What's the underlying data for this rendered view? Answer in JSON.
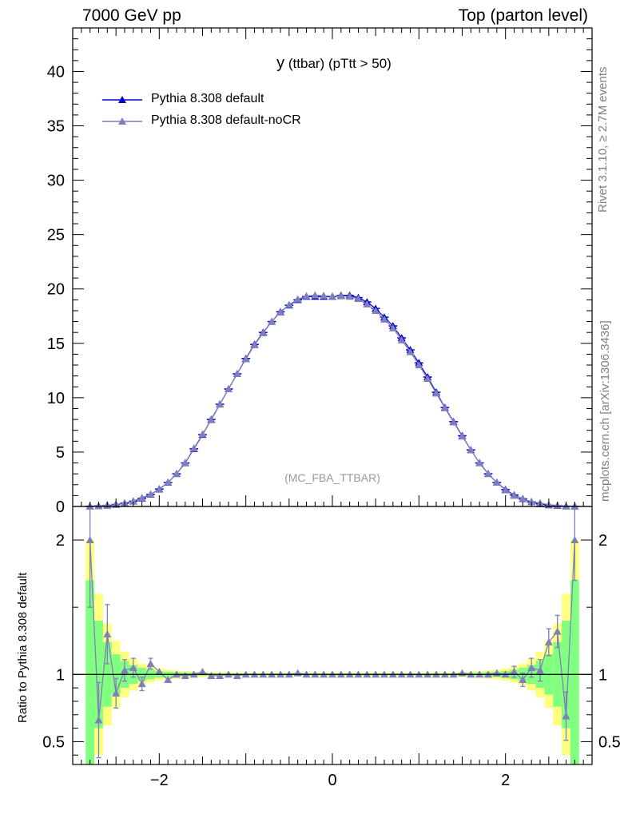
{
  "header": {
    "left": "7000 GeV pp",
    "right": "Top (parton level)"
  },
  "side_labels": {
    "rivet": "Rivet 3.1.10, ≥ 2.7M events",
    "mcplots": "mcplots.cern.ch [arXiv:1306.3436]"
  },
  "title_main": "y",
  "title_rest": " (ttbar) (pTtt > 50)",
  "watermark": "(MC_FBA_TTBAR)",
  "ratio_ylabel": "Ratio to Pythia 8.308 default",
  "colors": {
    "default": "#0000cc",
    "nocr": "#7f7fbb",
    "band_yellow": "#ffff80",
    "band_green": "#80ff80"
  },
  "chart_data": [
    {
      "type": "line",
      "panel": "main",
      "xlim": [
        -3,
        3
      ],
      "ylim": [
        0,
        44
      ],
      "yticks": [
        0,
        5,
        10,
        15,
        20,
        25,
        30,
        35,
        40
      ],
      "ytick_labels": [
        "0",
        "5",
        "10",
        "15",
        "20",
        "25",
        "30",
        "35",
        "40"
      ],
      "x": [
        -2.8,
        -2.7,
        -2.6,
        -2.5,
        -2.4,
        -2.3,
        -2.2,
        -2.1,
        -2.0,
        -1.9,
        -1.8,
        -1.7,
        -1.6,
        -1.5,
        -1.4,
        -1.3,
        -1.2,
        -1.1,
        -1.0,
        -0.9,
        -0.8,
        -0.7,
        -0.6,
        -0.5,
        -0.4,
        -0.3,
        -0.2,
        -0.1,
        0.0,
        0.1,
        0.2,
        0.3,
        0.4,
        0.5,
        0.6,
        0.7,
        0.8,
        0.9,
        1.0,
        1.1,
        1.2,
        1.3,
        1.4,
        1.5,
        1.6,
        1.7,
        1.8,
        1.9,
        2.0,
        2.1,
        2.2,
        2.3,
        2.4,
        2.5,
        2.6,
        2.7,
        2.8
      ],
      "series": [
        {
          "name": "Pythia 8.308 default",
          "values": [
            0.02,
            0.05,
            0.1,
            0.18,
            0.3,
            0.48,
            0.75,
            1.1,
            1.6,
            2.2,
            3.0,
            4.0,
            5.3,
            6.6,
            8.0,
            9.4,
            10.8,
            12.2,
            13.6,
            14.9,
            16.0,
            17.0,
            17.9,
            18.5,
            19.0,
            19.3,
            19.3,
            19.3,
            19.3,
            19.4,
            19.4,
            19.2,
            18.8,
            18.2,
            17.4,
            16.6,
            15.5,
            14.4,
            13.2,
            11.9,
            10.5,
            9.1,
            7.8,
            6.5,
            5.2,
            4.0,
            3.0,
            2.2,
            1.55,
            1.05,
            0.7,
            0.42,
            0.24,
            0.13,
            0.07,
            0.03,
            0.015
          ]
        },
        {
          "name": "Pythia 8.308 default-noCR",
          "values": [
            0.04,
            0.033,
            0.13,
            0.155,
            0.31,
            0.5,
            0.8,
            1.12,
            1.56,
            2.22,
            3.02,
            4.03,
            5.35,
            6.65,
            7.95,
            9.38,
            10.8,
            12.2,
            13.55,
            14.85,
            15.95,
            17.0,
            17.85,
            18.55,
            19.05,
            19.35,
            19.42,
            19.38,
            19.33,
            19.35,
            19.3,
            19.1,
            18.6,
            18.0,
            17.2,
            16.4,
            15.3,
            14.2,
            13.0,
            11.75,
            10.4,
            9.05,
            7.75,
            6.45,
            5.2,
            4.02,
            3.02,
            2.2,
            1.5,
            1.0,
            0.72,
            0.43,
            0.32,
            0.16,
            0.095,
            0.02,
            0.03
          ]
        }
      ]
    },
    {
      "type": "line",
      "panel": "ratio",
      "ylabel": "Ratio to Pythia 8.308 default",
      "xlim": [
        -3,
        3
      ],
      "ylim": [
        0.33,
        2.25
      ],
      "yticks": [
        0.5,
        1,
        2
      ],
      "ytick_labels": [
        "0.5",
        "1",
        "2"
      ],
      "xticks": [
        -2,
        0,
        2
      ],
      "xtick_labels": [
        "−2",
        "0",
        "2"
      ],
      "x": [
        -2.8,
        -2.7,
        -2.6,
        -2.5,
        -2.4,
        -2.3,
        -2.2,
        -2.1,
        -2.0,
        -1.9,
        -1.8,
        -1.7,
        -1.6,
        -1.5,
        -1.4,
        -1.3,
        -1.2,
        -1.1,
        -1.0,
        -0.9,
        -0.8,
        -0.7,
        -0.6,
        -0.5,
        -0.4,
        -0.3,
        -0.2,
        -0.1,
        0.0,
        0.1,
        0.2,
        0.3,
        0.4,
        0.5,
        0.6,
        0.7,
        0.8,
        0.9,
        1.0,
        1.1,
        1.2,
        1.3,
        1.4,
        1.5,
        1.6,
        1.7,
        1.8,
        1.9,
        2.0,
        2.1,
        2.2,
        2.3,
        2.4,
        2.5,
        2.6,
        2.7,
        2.8
      ],
      "series": [
        {
          "name": "Pythia 8.308 default-noCR",
          "values": [
            2.0,
            0.66,
            1.3,
            0.86,
            1.03,
            1.05,
            0.93,
            1.08,
            1.02,
            0.96,
            1.0,
            0.99,
            1.0,
            1.02,
            0.99,
            0.99,
            1.0,
            0.99,
            1.0,
            1.0,
            1.0,
            1.0,
            1.0,
            1.0,
            1.01,
            1.0,
            1.0,
            1.0,
            1.0,
            1.0,
            1.0,
            1.0,
            1.0,
            1.0,
            1.0,
            1.0,
            1.0,
            1.0,
            1.0,
            1.0,
            1.0,
            1.0,
            1.0,
            1.01,
            1.0,
            1.0,
            1.0,
            1.01,
            1.0,
            1.02,
            0.96,
            1.05,
            1.03,
            1.24,
            1.32,
            0.69,
            2.0
          ],
          "errors": [
            0.5,
            0.28,
            0.22,
            0.11,
            0.08,
            0.07,
            0.05,
            0.04,
            0.02,
            0.015,
            0.01,
            0.01,
            0.01,
            0.01,
            0.01,
            0.01,
            0.01,
            0.01,
            0.01,
            0.01,
            0.01,
            0.01,
            0.01,
            0.01,
            0.01,
            0.01,
            0.01,
            0.01,
            0.01,
            0.01,
            0.01,
            0.01,
            0.01,
            0.01,
            0.01,
            0.01,
            0.01,
            0.01,
            0.01,
            0.01,
            0.01,
            0.01,
            0.01,
            0.01,
            0.01,
            0.01,
            0.01,
            0.015,
            0.02,
            0.04,
            0.05,
            0.07,
            0.08,
            0.1,
            0.12,
            0.18,
            0.3
          ]
        }
      ],
      "band_yellow_halfwidth": [
        1.0,
        0.6,
        0.38,
        0.25,
        0.17,
        0.12,
        0.08,
        0.06,
        0.045,
        0.035,
        0.03,
        0.025,
        0.02,
        0.02,
        0.015,
        0.015,
        0.015,
        0.015,
        0.012,
        0.012,
        0.012,
        0.012,
        0.012,
        0.012,
        0.012,
        0.012,
        0.012,
        0.012,
        0.012,
        0.012,
        0.012,
        0.012,
        0.012,
        0.012,
        0.012,
        0.012,
        0.012,
        0.012,
        0.012,
        0.015,
        0.015,
        0.015,
        0.015,
        0.02,
        0.02,
        0.025,
        0.03,
        0.035,
        0.045,
        0.06,
        0.08,
        0.12,
        0.17,
        0.25,
        0.38,
        0.6,
        1.0
      ],
      "band_green_halfwidth": [
        0.7,
        0.4,
        0.24,
        0.15,
        0.1,
        0.07,
        0.05,
        0.035,
        0.025,
        0.02,
        0.017,
        0.014,
        0.012,
        0.01,
        0.009,
        0.008,
        0.008,
        0.008,
        0.007,
        0.007,
        0.007,
        0.007,
        0.007,
        0.007,
        0.007,
        0.007,
        0.007,
        0.007,
        0.007,
        0.007,
        0.007,
        0.007,
        0.007,
        0.007,
        0.007,
        0.007,
        0.007,
        0.007,
        0.007,
        0.008,
        0.008,
        0.008,
        0.009,
        0.01,
        0.012,
        0.014,
        0.017,
        0.02,
        0.025,
        0.035,
        0.05,
        0.07,
        0.1,
        0.15,
        0.24,
        0.4,
        0.7
      ]
    }
  ]
}
